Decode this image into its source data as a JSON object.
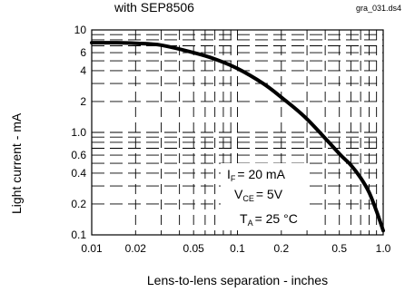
{
  "header": {
    "title": "with SEP8506",
    "file_tag": "gra_031.ds4"
  },
  "chart_data": {
    "type": "line",
    "xlabel": "Lens-to-lens separation - inches",
    "ylabel": "Light current - mA",
    "x_scale": "log",
    "y_scale": "log",
    "xlim": [
      0.01,
      1.0
    ],
    "ylim": [
      0.1,
      10
    ],
    "x_ticks": [
      "0.01",
      "0.02",
      "0.05",
      "0.1",
      "0.2",
      "0.5",
      "1.0"
    ],
    "y_ticks": [
      "10",
      "6",
      "4",
      "2",
      "1.0",
      "0.6",
      "0.4",
      "0.2",
      "0.1"
    ],
    "grid": true,
    "conditions": {
      "if": "= 20 mA",
      "vce": "= 5V",
      "ta": "= 25 °C"
    },
    "series": [
      {
        "x": [
          0.01,
          0.015,
          0.02,
          0.03,
          0.05,
          0.07,
          0.1,
          0.15,
          0.2,
          0.3,
          0.5,
          0.6,
          0.7,
          0.8,
          0.9,
          1.0
        ],
        "y": [
          7.5,
          7.5,
          7.4,
          7.1,
          6.0,
          5.2,
          4.2,
          3.0,
          2.2,
          1.35,
          0.62,
          0.48,
          0.36,
          0.26,
          0.17,
          0.11
        ]
      }
    ]
  }
}
